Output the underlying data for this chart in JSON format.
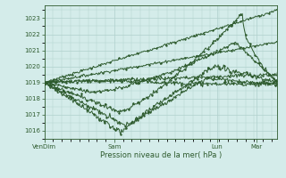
{
  "title": "Pression niveau de la mer( hPa )",
  "bg_color": "#d4ecea",
  "grid_color": "#b0d0cc",
  "line_color": "#2d5a2d",
  "ylim": [
    1015.5,
    1023.8
  ],
  "yticks": [
    1016,
    1017,
    1018,
    1019,
    1020,
    1021,
    1022,
    1023
  ],
  "xtick_labels": [
    "VenDim",
    "Sam",
    "Lun",
    "Mar"
  ],
  "xtick_positions": [
    0.0,
    0.3,
    0.74,
    0.91
  ],
  "figsize": [
    3.2,
    2.0
  ],
  "dpi": 100
}
